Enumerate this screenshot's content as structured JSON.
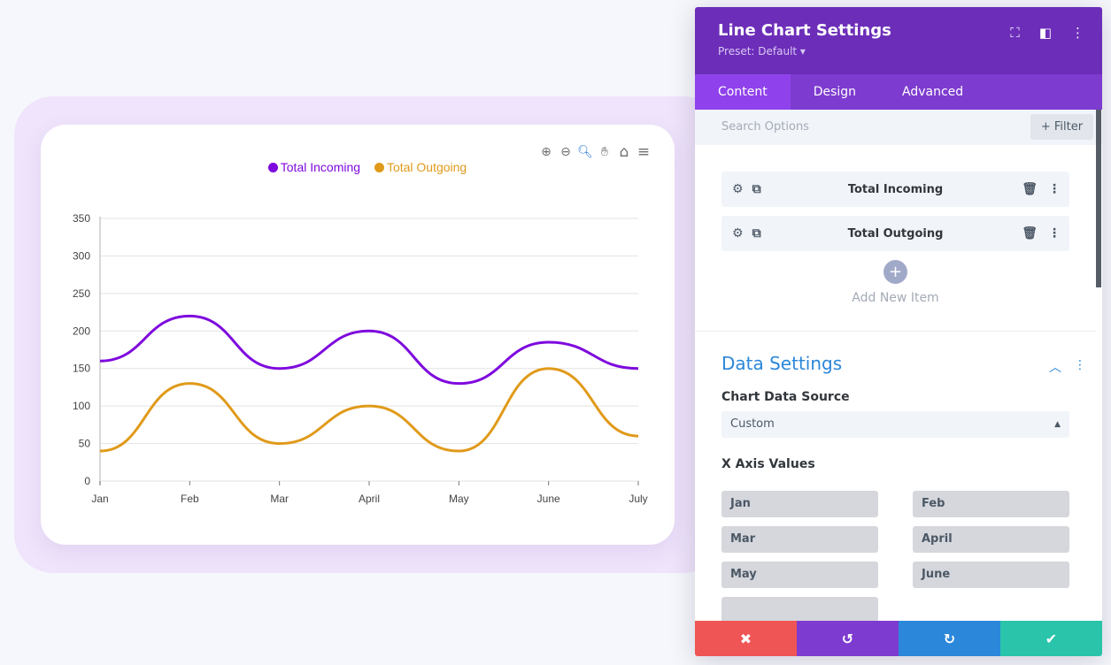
{
  "panel": {
    "title": "Line Chart Settings",
    "preset": "Preset: Default ▾",
    "tabs": [
      "Content",
      "Design",
      "Advanced"
    ],
    "search_placeholder": "Search Options",
    "filter_label": "+ Filter",
    "items": [
      "Total Incoming",
      "Total Outgoing"
    ],
    "add_item": "Add New Item",
    "section_title": "Data Settings",
    "source_label": "Chart Data Source",
    "source_value": "Custom",
    "x_axis_label": "X Axis Values",
    "x_axis_values": [
      "Jan",
      "Feb",
      "Mar",
      "April",
      "May",
      "June"
    ],
    "footer_colors": [
      "#ef5555",
      "#7e3bd0",
      "#2b87da",
      "#29c4a9"
    ]
  },
  "chart_data": {
    "type": "line",
    "categories": [
      "Jan",
      "Feb",
      "Mar",
      "April",
      "May",
      "June",
      "July"
    ],
    "series": [
      {
        "name": "Total Incoming",
        "color": "#7e09de",
        "values": [
          160,
          220,
          150,
          200,
          130,
          185,
          150
        ]
      },
      {
        "name": "Total Outgoing",
        "color": "#e09a1a",
        "values": [
          40,
          130,
          50,
          100,
          40,
          150,
          60
        ]
      }
    ],
    "yticks": [
      0,
      50,
      100,
      150,
      200,
      250,
      300,
      350
    ],
    "ylim": [
      0,
      350
    ],
    "grid": true,
    "legend": "top-center"
  }
}
